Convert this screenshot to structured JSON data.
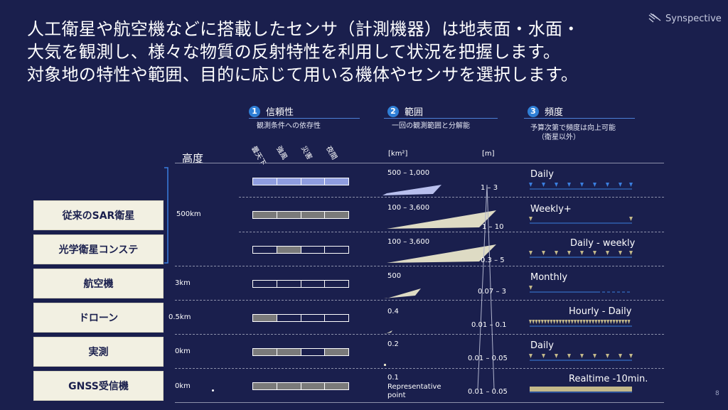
{
  "intro": {
    "line1": "人工衛星や航空機などに搭載したセンサ（計測機器）は地表面・水面・",
    "line2": "大気を観測し、様々な物質の反射特性を利用して状況を把握します。",
    "line3": "対象地の特性や範囲、目的に応じて用いる機体やセンサを選択します。"
  },
  "logo": {
    "text": "Synspective",
    "icon": "synspective-logo-icon"
  },
  "page_number": "8",
  "columns": {
    "reliability": {
      "number": "1",
      "title": "信頼性",
      "subtitle": "観測条件への依存性",
      "conditions": [
        "曇天下",
        "強風",
        "災害",
        "夜間"
      ]
    },
    "range": {
      "number": "2",
      "title": "範囲",
      "subtitle": "一回の観測範囲と分解能",
      "unit_area": "[km²]",
      "unit_res": "[m]"
    },
    "frequency": {
      "number": "3",
      "title": "頻度",
      "subtitle1": "予算次第で頻度は向上可能",
      "subtitle2": "（衛星以外）"
    }
  },
  "altitude_title": "高度",
  "altitudes": {
    "sat": "500km",
    "air": "3km",
    "drone": "0.5km",
    "survey": "0km",
    "gnss": "0km"
  },
  "platforms": [
    {
      "label": "従来のSAR衛星"
    },
    {
      "label": "光学衛星コンステ"
    },
    {
      "label": "航空機"
    },
    {
      "label": "ドローン"
    },
    {
      "label": "実測"
    },
    {
      "label": "GNSS受信機"
    }
  ],
  "rows": [
    {
      "reliability": [
        "blue",
        "blue",
        "blue",
        "blue"
      ],
      "area": "500 – 1,000",
      "res": "1 – 3",
      "freq": "Daily",
      "color": "#3a7fe0"
    },
    {
      "reliability": [
        "gray",
        "gray",
        "gray",
        "gray"
      ],
      "area": "100 – 3,600",
      "res": "1 – 10",
      "freq": "Weekly+",
      "color": "#3a7fe0"
    },
    {
      "reliability": [
        "off",
        "gray",
        "off",
        "off"
      ],
      "area": "100 – 3,600",
      "res": "0.3 – 5",
      "freq": "Daily - weekly",
      "color": "#3a7fe0"
    },
    {
      "reliability": [
        "off",
        "off",
        "off",
        "off"
      ],
      "area": "500",
      "res": "0.07 – 3",
      "freq": "Monthly",
      "color": "#3a7fe0"
    },
    {
      "reliability": [
        "gray",
        "off",
        "off",
        "off"
      ],
      "area": "0.4",
      "res": "0.01 – 0.1",
      "freq": "Hourly - Daily",
      "color": "#3a7fe0"
    },
    {
      "reliability": [
        "gray",
        "gray",
        "off",
        "gray"
      ],
      "area": "0.2",
      "res": "0.01 – 0.05",
      "freq": "Daily",
      "color": "#3a7fe0"
    },
    {
      "reliability": [
        "gray",
        "gray",
        "gray",
        "gray"
      ],
      "area": "0.1",
      "area_note1": "Representative",
      "area_note2": "point",
      "res": "0.01 – 0.05",
      "freq": "Realtime -10min.",
      "color": "#3a7fe0"
    }
  ],
  "colors": {
    "background": "#1a1f4d",
    "accent": "#3a7fe0",
    "box": "#f2f0e2",
    "marker": "#c4b98a"
  }
}
